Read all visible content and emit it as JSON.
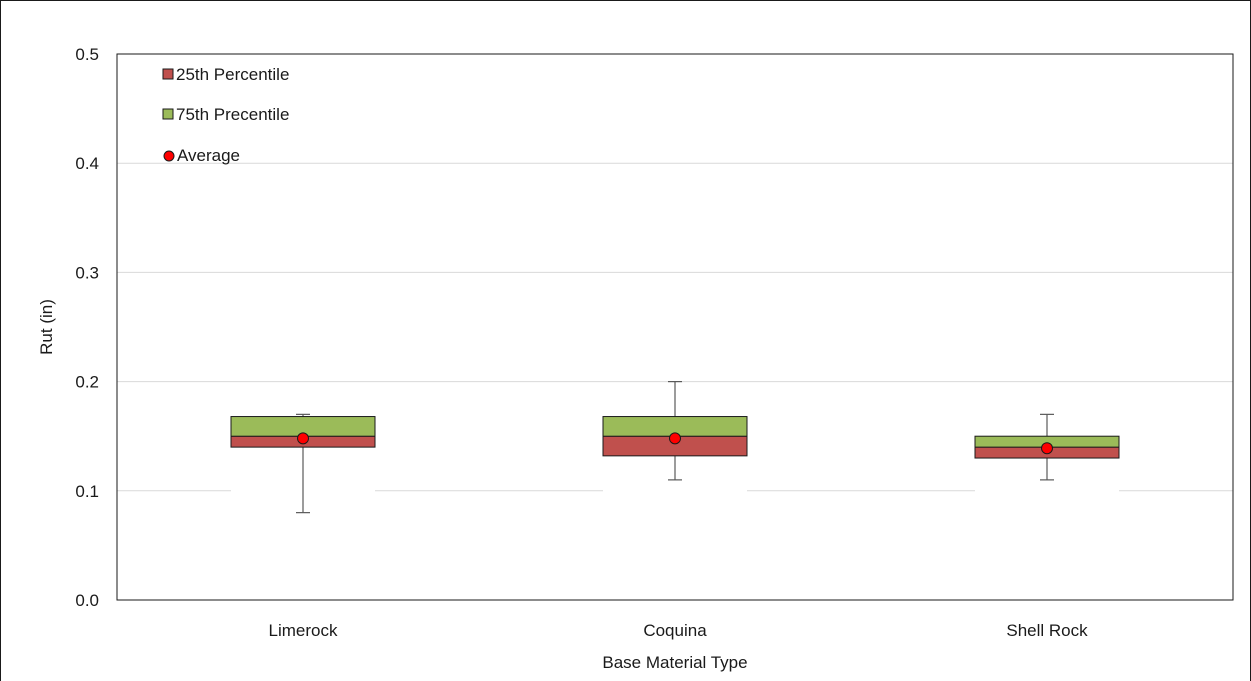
{
  "chart_data": {
    "type": "box",
    "xlabel": "Base Material Type",
    "ylabel": "Rut (in)",
    "ylim": [
      0,
      0.5
    ],
    "yticks": [
      "0.0",
      "0.1",
      "0.2",
      "0.3",
      "0.4",
      "0.5"
    ],
    "categories": [
      "Limerock",
      "Coquina",
      "Shell Rock"
    ],
    "series": [
      {
        "name": "25th Percentile",
        "color": "#c0504d",
        "boxes": [
          {
            "low": 0.14,
            "high": 0.15
          },
          {
            "low": 0.132,
            "high": 0.15
          },
          {
            "low": 0.13,
            "high": 0.14
          }
        ]
      },
      {
        "name": "75th Precentile",
        "color": "#9bbb59",
        "boxes": [
          {
            "low": 0.15,
            "high": 0.168
          },
          {
            "low": 0.15,
            "high": 0.168
          },
          {
            "low": 0.14,
            "high": 0.15
          }
        ]
      },
      {
        "name": "Average",
        "color": "#ff0000",
        "values": [
          0.148,
          0.148,
          0.139
        ]
      }
    ],
    "whiskers": [
      {
        "min": 0.08,
        "max": 0.17
      },
      {
        "min": 0.11,
        "max": 0.2
      },
      {
        "min": 0.11,
        "max": 0.17
      }
    ],
    "grid": true,
    "legend_position": "top-left"
  }
}
